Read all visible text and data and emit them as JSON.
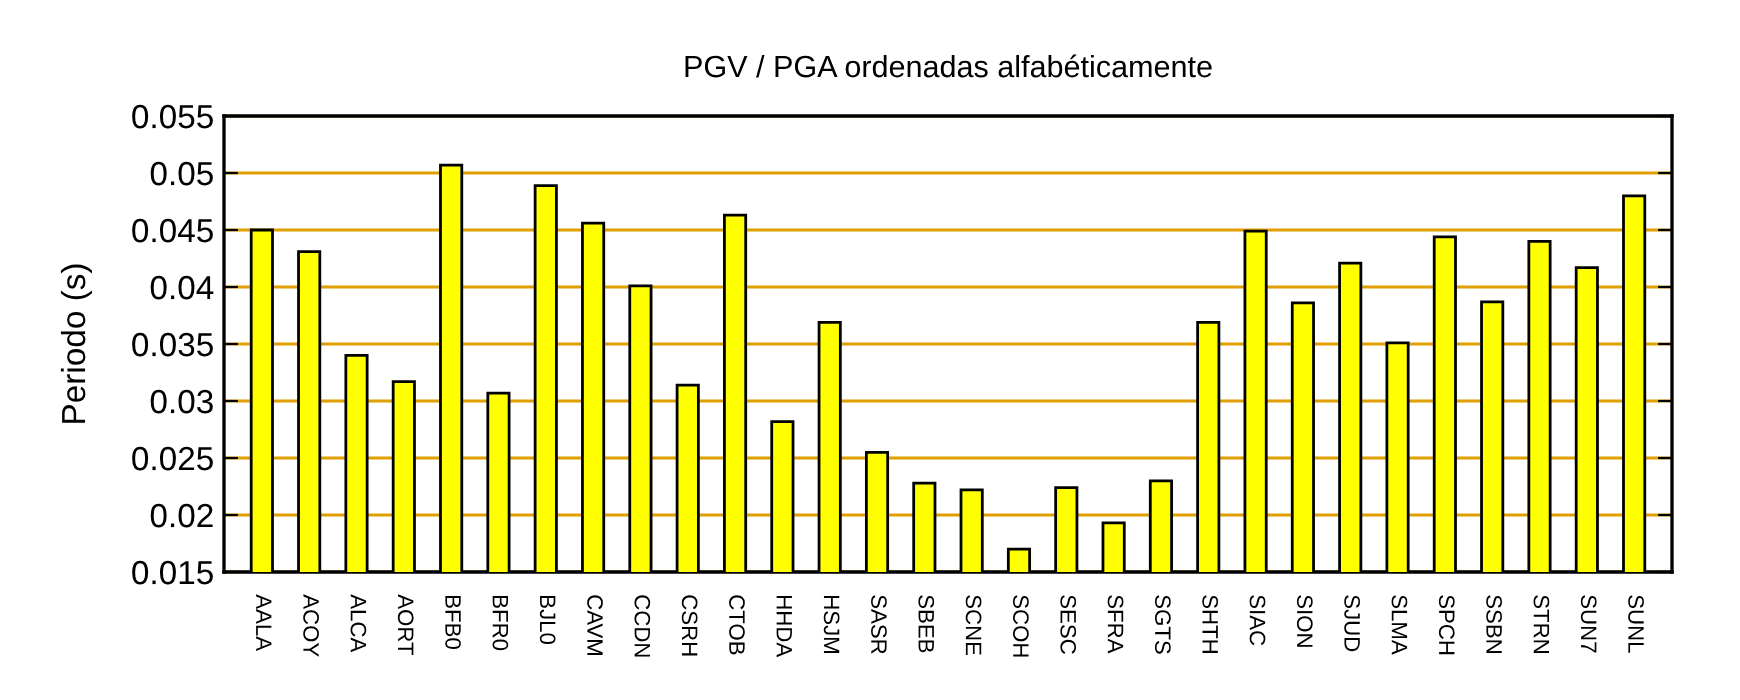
{
  "chart_data": {
    "type": "bar",
    "title": "PGV / PGA ordenadas alfabéticamente",
    "ylabel": "Periodo (s)",
    "categories": [
      "AALA",
      "ACOY",
      "ALCA",
      "AORT",
      "BFB0",
      "BFR0",
      "BJL0",
      "CAVM",
      "CCDN",
      "CSRH",
      "CTOB",
      "HHDA",
      "HSJM",
      "SASR",
      "SBEB",
      "SCNE",
      "SCOH",
      "SESC",
      "SFRA",
      "SGTS",
      "SHTH",
      "SIAC",
      "SION",
      "SJUD",
      "SLMA",
      "SPCH",
      "SSBN",
      "STRN",
      "SUN7",
      "SUNL"
    ],
    "values": [
      0.045,
      0.0431,
      0.034,
      0.0317,
      0.0507,
      0.0307,
      0.0489,
      0.0456,
      0.0401,
      0.0314,
      0.0463,
      0.0282,
      0.0369,
      0.0255,
      0.0228,
      0.0222,
      0.017,
      0.0224,
      0.0193,
      0.023,
      0.0369,
      0.0449,
      0.0386,
      0.0421,
      0.0351,
      0.0444,
      0.0387,
      0.044,
      0.0417,
      0.048
    ],
    "color": "#ffff00",
    "ylim": [
      0.015,
      0.055
    ],
    "yticks": [
      0.015,
      0.02,
      0.025,
      0.03,
      0.035,
      0.04,
      0.045,
      0.05,
      0.055
    ],
    "grid": "y"
  }
}
